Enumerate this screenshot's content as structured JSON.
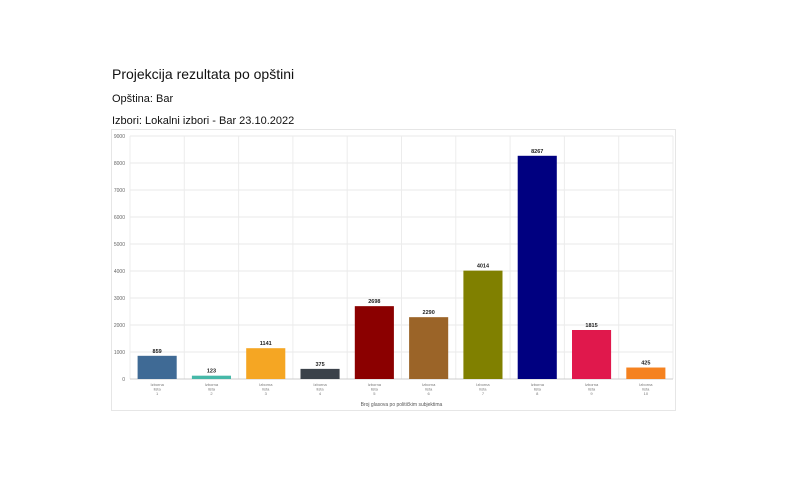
{
  "header": {
    "title": "Projekcija rezultata po opštini",
    "municipality": "Opština: Bar",
    "election": "Izbori: Lokalni izbori - Bar 23.10.2022"
  },
  "chart_data": {
    "type": "bar",
    "categories": [
      [
        "Izborna",
        "lista",
        "1"
      ],
      [
        "Izborna",
        "lista",
        "2"
      ],
      [
        "Izborna",
        "lista",
        "3"
      ],
      [
        "Izborna",
        "lista",
        "4"
      ],
      [
        "Izborna",
        "lista",
        "5"
      ],
      [
        "Izborna",
        "lista",
        "6"
      ],
      [
        "Izborna",
        "lista",
        "7"
      ],
      [
        "Izborna",
        "lista",
        "8"
      ],
      [
        "Izborna",
        "lista",
        "9"
      ],
      [
        "Izborna",
        "lista",
        "10"
      ]
    ],
    "values": [
      859,
      123,
      1141,
      375,
      2698,
      2290,
      4014,
      8267,
      1815,
      425
    ],
    "colors": [
      "#3f6a95",
      "#46b8a8",
      "#f5a623",
      "#3b424a",
      "#8b0000",
      "#9b6428",
      "#808000",
      "#000080",
      "#e0184c",
      "#f58220"
    ],
    "ylim": [
      0,
      9000
    ],
    "yticks": [
      0,
      1000,
      2000,
      3000,
      4000,
      5000,
      6000,
      7000,
      8000,
      9000
    ],
    "xlabel": "Broj glasova po političkim subjektima",
    "ylabel": "",
    "grid": true
  }
}
